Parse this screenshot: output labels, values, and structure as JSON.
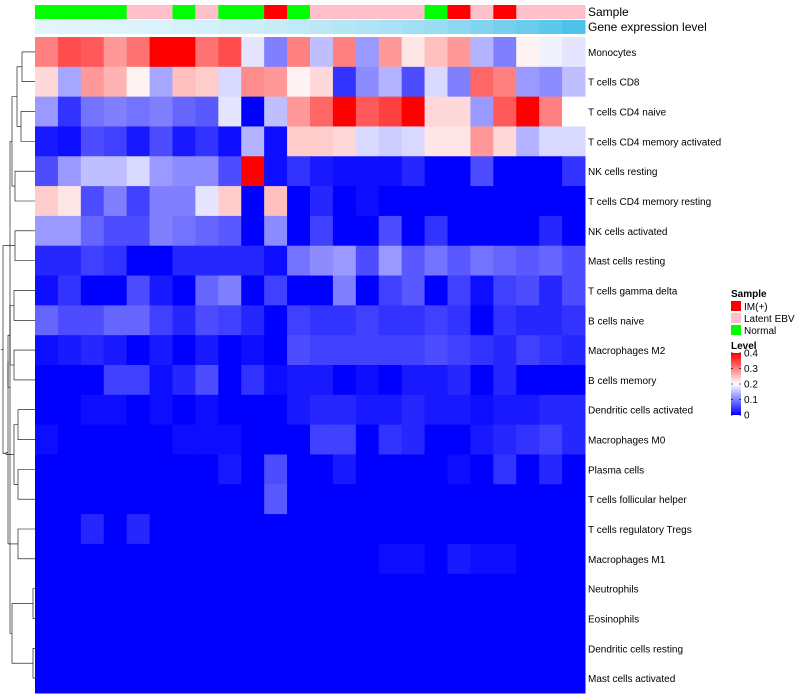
{
  "chart_data": {
    "type": "heatmap",
    "title": "",
    "annotation_tracks": [
      {
        "name": "Sample",
        "values": [
          "Normal",
          "Normal",
          "Normal",
          "Normal",
          "Latent EBV",
          "Latent EBV",
          "Normal",
          "Latent EBV",
          "Normal",
          "Normal",
          "IM(+)",
          "Normal",
          "Latent EBV",
          "Latent EBV",
          "Latent EBV",
          "Latent EBV",
          "Latent EBV",
          "Normal",
          "IM(+)",
          "Latent EBV",
          "IM(+)",
          "Latent EBV",
          "Latent EBV",
          "Latent EBV"
        ]
      },
      {
        "name": "Gene expression level",
        "values": [
          0.02,
          0.03,
          0.04,
          0.05,
          0.06,
          0.08,
          0.1,
          0.12,
          0.14,
          0.16,
          0.2,
          0.24,
          0.28,
          0.32,
          0.36,
          0.4,
          0.45,
          0.5,
          0.58,
          0.66,
          0.74,
          0.82,
          0.9,
          1.0
        ]
      }
    ],
    "rows": [
      "Monocytes",
      "T cells CD8",
      "T cells CD4 naive",
      "T cells CD4 memory activated",
      "NK cells resting",
      "T cells CD4 memory resting",
      "NK cells activated",
      "Mast cells resting",
      "T cells gamma delta",
      "B cells naive",
      "Macrophages M2",
      "B cells memory",
      "Dendritic cells activated",
      "Macrophages M0",
      "Plasma cells",
      "T cells follicular helper",
      "T cells regulatory  Tregs",
      "Macrophages M1",
      "Neutrophils",
      "Eosinophils",
      "Dendritic cells resting",
      "Mast cells activated"
    ],
    "n_columns": 24,
    "values": [
      [
        0.3,
        0.34,
        0.33,
        0.28,
        0.31,
        0.4,
        0.4,
        0.31,
        0.34,
        0.18,
        0.1,
        0.3,
        0.15,
        0.3,
        0.12,
        0.28,
        0.22,
        0.25,
        0.28,
        0.14,
        0.1,
        0.21,
        0.19,
        0.18
      ],
      [
        0.23,
        0.13,
        0.28,
        0.26,
        0.21,
        0.13,
        0.25,
        0.24,
        0.17,
        0.29,
        0.28,
        0.21,
        0.23,
        0.04,
        0.11,
        0.14,
        0.06,
        0.17,
        0.1,
        0.32,
        0.3,
        0.12,
        0.11,
        0.15
      ],
      [
        0.12,
        0.04,
        0.09,
        0.1,
        0.09,
        0.1,
        0.08,
        0.07,
        0.18,
        0.0,
        0.15,
        0.28,
        0.32,
        0.4,
        0.33,
        0.35,
        0.4,
        0.23,
        0.23,
        0.12,
        0.33,
        0.4,
        0.3,
        0.2
      ],
      [
        0.02,
        0.01,
        0.06,
        0.05,
        0.02,
        0.06,
        0.02,
        0.04,
        0.01,
        0.14,
        0.01,
        0.24,
        0.24,
        0.23,
        0.17,
        0.16,
        0.17,
        0.22,
        0.22,
        0.28,
        0.23,
        0.14,
        0.17,
        0.17
      ],
      [
        0.06,
        0.12,
        0.15,
        0.15,
        0.17,
        0.12,
        0.11,
        0.11,
        0.06,
        0.4,
        0.01,
        0.04,
        0.02,
        0.01,
        0.01,
        0.01,
        0.03,
        0.0,
        0.0,
        0.06,
        0.0,
        0.0,
        0.0,
        0.04
      ],
      [
        0.24,
        0.22,
        0.06,
        0.1,
        0.05,
        0.1,
        0.1,
        0.18,
        0.24,
        0.0,
        0.25,
        0.0,
        0.03,
        0.0,
        0.01,
        0.0,
        0.0,
        0.0,
        0.0,
        0.0,
        0.0,
        0.0,
        0.0,
        0.0
      ],
      [
        0.12,
        0.12,
        0.08,
        0.06,
        0.06,
        0.1,
        0.09,
        0.08,
        0.07,
        0.0,
        0.11,
        0.0,
        0.05,
        0.0,
        0.0,
        0.06,
        0.0,
        0.04,
        0.0,
        0.0,
        0.0,
        0.0,
        0.03,
        0.0
      ],
      [
        0.03,
        0.03,
        0.05,
        0.04,
        0.0,
        0.0,
        0.03,
        0.03,
        0.03,
        0.03,
        0.01,
        0.09,
        0.11,
        0.12,
        0.06,
        0.12,
        0.07,
        0.09,
        0.07,
        0.09,
        0.08,
        0.07,
        0.08,
        0.06
      ],
      [
        0.01,
        0.04,
        0.0,
        0.0,
        0.06,
        0.02,
        0.0,
        0.08,
        0.1,
        0.0,
        0.05,
        0.0,
        0.0,
        0.1,
        0.0,
        0.05,
        0.07,
        0.0,
        0.05,
        0.01,
        0.05,
        0.06,
        0.03,
        0.06
      ],
      [
        0.08,
        0.06,
        0.06,
        0.08,
        0.08,
        0.05,
        0.03,
        0.06,
        0.05,
        0.03,
        0.0,
        0.05,
        0.04,
        0.04,
        0.05,
        0.04,
        0.04,
        0.05,
        0.04,
        0.0,
        0.04,
        0.03,
        0.03,
        0.04
      ],
      [
        0.01,
        0.02,
        0.03,
        0.02,
        0.0,
        0.02,
        0.0,
        0.02,
        0.0,
        0.01,
        0.0,
        0.06,
        0.05,
        0.05,
        0.05,
        0.05,
        0.05,
        0.06,
        0.05,
        0.04,
        0.03,
        0.05,
        0.04,
        0.03
      ],
      [
        0.0,
        0.0,
        0.0,
        0.05,
        0.05,
        0.01,
        0.03,
        0.06,
        0.0,
        0.04,
        0.01,
        0.02,
        0.02,
        0.0,
        0.01,
        0.0,
        0.02,
        0.02,
        0.03,
        0.0,
        0.03,
        0.0,
        0.0,
        0.0
      ],
      [
        0.0,
        0.0,
        0.01,
        0.01,
        0.0,
        0.01,
        0.0,
        0.01,
        0.0,
        0.0,
        0.0,
        0.02,
        0.03,
        0.03,
        0.02,
        0.02,
        0.03,
        0.02,
        0.02,
        0.01,
        0.02,
        0.02,
        0.03,
        0.03
      ],
      [
        0.01,
        0.0,
        0.0,
        0.0,
        0.0,
        0.0,
        0.01,
        0.01,
        0.01,
        0.0,
        0.0,
        0.0,
        0.05,
        0.05,
        0.0,
        0.04,
        0.03,
        0.0,
        0.0,
        0.02,
        0.03,
        0.04,
        0.05,
        0.03
      ],
      [
        0.0,
        0.0,
        0.0,
        0.0,
        0.0,
        0.0,
        0.0,
        0.0,
        0.02,
        0.0,
        0.06,
        0.0,
        0.0,
        0.02,
        0.0,
        0.0,
        0.0,
        0.0,
        0.01,
        0.0,
        0.04,
        0.0,
        0.03,
        0.0
      ],
      [
        0.0,
        0.0,
        0.0,
        0.0,
        0.0,
        0.0,
        0.0,
        0.0,
        0.0,
        0.0,
        0.07,
        0.0,
        0.0,
        0.0,
        0.0,
        0.0,
        0.0,
        0.0,
        0.0,
        0.0,
        0.0,
        0.0,
        0.0,
        0.0
      ],
      [
        0.0,
        0.0,
        0.03,
        0.0,
        0.03,
        0.0,
        0.0,
        0.0,
        0.0,
        0.0,
        0.0,
        0.0,
        0.0,
        0.0,
        0.0,
        0.0,
        0.0,
        0.0,
        0.0,
        0.0,
        0.0,
        0.0,
        0.0,
        0.0
      ],
      [
        0.0,
        0.0,
        0.0,
        0.0,
        0.0,
        0.0,
        0.0,
        0.0,
        0.0,
        0.0,
        0.0,
        0.0,
        0.0,
        0.0,
        0.0,
        0.01,
        0.01,
        0.0,
        0.02,
        0.01,
        0.01,
        0.0,
        0.0,
        0.0
      ],
      [
        0,
        0,
        0,
        0,
        0,
        0,
        0,
        0,
        0,
        0,
        0,
        0,
        0,
        0,
        0,
        0,
        0,
        0,
        0,
        0,
        0,
        0,
        0,
        0
      ],
      [
        0,
        0,
        0,
        0,
        0,
        0,
        0,
        0,
        0,
        0,
        0,
        0,
        0,
        0,
        0,
        0,
        0,
        0,
        0,
        0,
        0,
        0,
        0,
        0
      ],
      [
        0,
        0,
        0,
        0,
        0,
        0,
        0,
        0,
        0,
        0,
        0,
        0,
        0,
        0,
        0,
        0,
        0,
        0,
        0,
        0,
        0,
        0,
        0,
        0
      ],
      [
        0,
        0,
        0,
        0,
        0,
        0,
        0,
        0,
        0,
        0,
        0,
        0,
        0,
        0,
        0,
        0,
        0,
        0,
        0,
        0,
        0,
        0,
        0,
        0
      ]
    ],
    "color_scale": {
      "low": "#0000ff",
      "mid": "#ffffff",
      "high": "#ff0000",
      "range": [
        0,
        0.4
      ],
      "midpoint": 0.2
    },
    "legend": {
      "sample": {
        "title": "Sample",
        "items": [
          {
            "label": "IM(+)",
            "color": "#ff0000"
          },
          {
            "label": "Latent EBV",
            "color": "#ffc0cb"
          },
          {
            "label": "Normal",
            "color": "#00ff00"
          }
        ]
      },
      "level": {
        "title": "Level",
        "ticks": [
          "0.4",
          "0.3",
          "0.2",
          "0.1",
          "0"
        ],
        "tick_values": [
          0.4,
          0.3,
          0.2,
          0.1,
          0
        ]
      }
    },
    "track_colors": {
      "expression_low": "#e6f6fc",
      "expression_high": "#4dc3ea"
    },
    "row_dendrogram": true
  }
}
